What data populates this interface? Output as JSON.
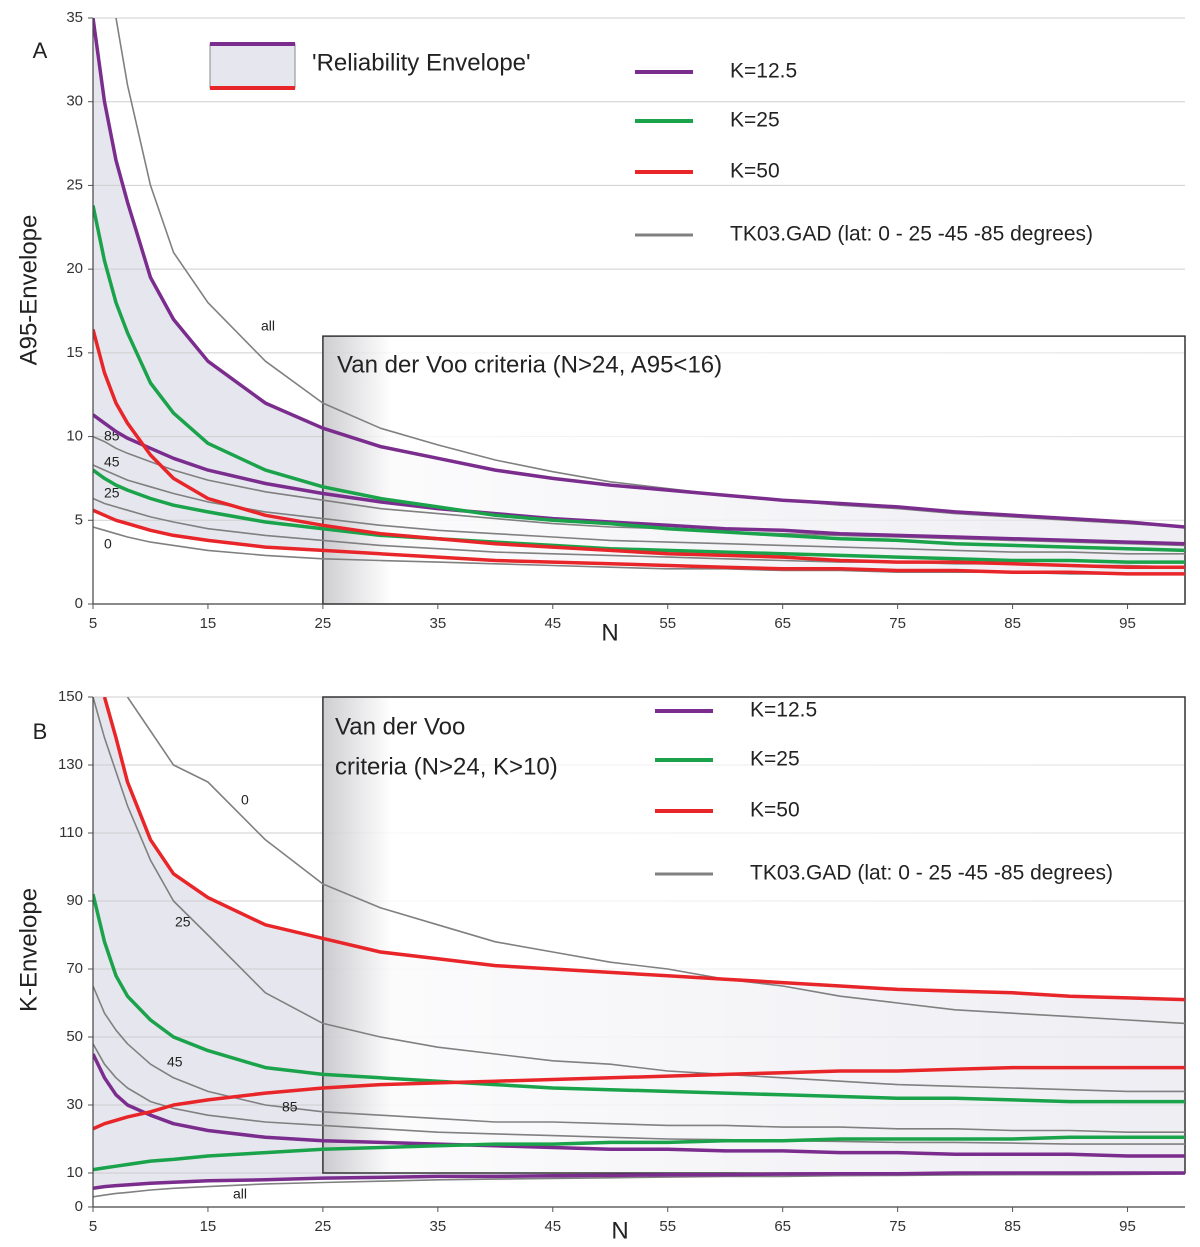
{
  "chart_data": [
    {
      "type": "line",
      "panel": "A",
      "ylabel": "A95-Envelope",
      "xlabel": "N",
      "x": [
        5,
        6,
        7,
        8,
        10,
        12,
        15,
        20,
        25,
        30,
        35,
        40,
        45,
        50,
        55,
        60,
        65,
        70,
        75,
        80,
        85,
        90,
        95,
        100
      ],
      "xlim": [
        5,
        100
      ],
      "xticks": [
        5,
        15,
        25,
        35,
        45,
        55,
        65,
        75,
        85,
        95
      ],
      "ylim": [
        0,
        35
      ],
      "yticks": [
        0,
        5,
        10,
        15,
        20,
        25,
        30,
        35
      ],
      "grid": true,
      "envelope_legend": "'Reliability Envelope'",
      "envelopes": [
        {
          "name": "K=12.5",
          "color": "#7b2d8e",
          "upper": [
            35,
            30,
            26.5,
            24,
            19.5,
            17,
            14.5,
            12,
            10.5,
            9.4,
            8.7,
            8,
            7.5,
            7.1,
            6.8,
            6.5,
            6.2,
            6,
            5.8,
            5.5,
            5.3,
            5.1,
            4.9,
            4.6
          ],
          "lower": [
            11.3,
            10.8,
            10.3,
            9.9,
            9.3,
            8.7,
            8,
            7.2,
            6.6,
            6.1,
            5.7,
            5.4,
            5.1,
            4.9,
            4.7,
            4.5,
            4.4,
            4.2,
            4.1,
            4,
            3.9,
            3.8,
            3.7,
            3.6
          ]
        },
        {
          "name": "K=25",
          "color": "#1aa34a",
          "upper": [
            23.8,
            20.5,
            18,
            16.2,
            13.2,
            11.4,
            9.6,
            8,
            7,
            6.3,
            5.8,
            5.3,
            5,
            4.8,
            4.5,
            4.3,
            4.1,
            3.9,
            3.8,
            3.6,
            3.5,
            3.4,
            3.3,
            3.2
          ],
          "lower": [
            8,
            7.5,
            7.1,
            6.8,
            6.3,
            5.9,
            5.5,
            4.9,
            4.5,
            4.1,
            3.9,
            3.7,
            3.5,
            3.3,
            3.2,
            3.1,
            3,
            2.9,
            2.8,
            2.7,
            2.6,
            2.6,
            2.5,
            2.5
          ]
        },
        {
          "name": "K=50",
          "color": "#e8262a",
          "upper": [
            16.4,
            13.8,
            12,
            10.8,
            8.9,
            7.5,
            6.3,
            5.3,
            4.7,
            4.2,
            3.9,
            3.6,
            3.4,
            3.2,
            3,
            2.9,
            2.8,
            2.6,
            2.5,
            2.5,
            2.4,
            2.3,
            2.2,
            2.2
          ],
          "lower": [
            5.6,
            5.3,
            5,
            4.8,
            4.4,
            4.1,
            3.8,
            3.4,
            3.2,
            3,
            2.8,
            2.6,
            2.5,
            2.4,
            2.3,
            2.2,
            2.1,
            2.1,
            2,
            2,
            1.9,
            1.9,
            1.8,
            1.8
          ]
        }
      ],
      "tk03": {
        "name": "TK03.GAD (lat: 0 - 25 -45 -85 degrees)",
        "color": "#808080",
        "lines": [
          {
            "label": "all",
            "values": [
              null,
              null,
              35,
              31,
              25,
              21,
              18,
              14.5,
              12,
              10.5,
              9.5,
              8.6,
              7.9,
              7.3,
              6.9,
              6.5,
              6.2,
              5.9,
              5.7,
              5.4,
              5.2,
              5,
              4.8,
              4.6
            ]
          },
          {
            "label": "85",
            "values": [
              10,
              9.7,
              9.3,
              9,
              8.5,
              8,
              7.4,
              6.7,
              6.2,
              5.7,
              5.4,
              5.1,
              4.8,
              4.6,
              4.5,
              4.3,
              4.2,
              4.1,
              4,
              3.9,
              3.8,
              3.7,
              3.6,
              3.5
            ]
          },
          {
            "label": "45",
            "values": [
              8.3,
              8,
              7.7,
              7.4,
              7,
              6.6,
              6.1,
              5.5,
              5.1,
              4.7,
              4.4,
              4.2,
              4,
              3.8,
              3.7,
              3.6,
              3.5,
              3.4,
              3.3,
              3.2,
              3.1,
              3.1,
              3,
              3
            ]
          },
          {
            "label": "25",
            "values": [
              6.3,
              6,
              5.8,
              5.6,
              5.2,
              4.9,
              4.5,
              4.1,
              3.8,
              3.5,
              3.3,
              3.1,
              3,
              2.9,
              2.8,
              2.7,
              2.6,
              2.5,
              2.5,
              2.4,
              2.4,
              2.3,
              2.3,
              2.2
            ]
          },
          {
            "label": "0",
            "values": [
              4.6,
              4.4,
              4.2,
              4,
              3.7,
              3.5,
              3.2,
              2.9,
              2.7,
              2.6,
              2.5,
              2.4,
              2.3,
              2.2,
              2.1,
              2.1,
              2,
              2,
              1.9,
              1.9,
              1.9,
              1.8,
              1.8,
              1.8
            ]
          }
        ]
      },
      "criteria": {
        "text": [
          "Van der Voo criteria (N>24, A95<16)"
        ],
        "n": 25,
        "bound": 16,
        "region": "below"
      }
    },
    {
      "type": "line",
      "panel": "B",
      "ylabel": "K-Envelope",
      "xlabel": "N",
      "x": [
        5,
        6,
        7,
        8,
        10,
        12,
        15,
        20,
        25,
        30,
        35,
        40,
        45,
        50,
        55,
        60,
        65,
        70,
        75,
        80,
        85,
        90,
        95,
        100
      ],
      "xlim": [
        5,
        100
      ],
      "xticks": [
        5,
        15,
        25,
        35,
        45,
        55,
        65,
        75,
        85,
        95
      ],
      "ylim": [
        0,
        150
      ],
      "yticks": [
        0,
        10,
        30,
        50,
        70,
        90,
        110,
        130,
        150
      ],
      "grid": true,
      "envelopes": [
        {
          "name": "K=12.5",
          "color": "#7b2d8e",
          "upper": [
            45,
            38,
            33,
            30,
            27,
            24.5,
            22.5,
            20.5,
            19.5,
            19,
            18.5,
            18,
            17.5,
            17,
            17,
            16.5,
            16.5,
            16,
            16,
            15.5,
            15.5,
            15.5,
            15,
            15
          ],
          "lower": [
            5.5,
            6,
            6.3,
            6.5,
            7,
            7.3,
            7.7,
            8,
            8.5,
            8.7,
            9,
            9,
            9.2,
            9.3,
            9.5,
            9.5,
            9.7,
            9.8,
            9.8,
            10,
            10,
            10,
            10,
            10
          ]
        },
        {
          "name": "K=25",
          "color": "#1aa34a",
          "upper": [
            92,
            78,
            68,
            62,
            55,
            50,
            46,
            41,
            39,
            38,
            37,
            36,
            35,
            34.5,
            34,
            33.5,
            33,
            32.5,
            32,
            32,
            31.5,
            31,
            31,
            31
          ],
          "lower": [
            11,
            11.5,
            12,
            12.5,
            13.5,
            14,
            15,
            16,
            17,
            17.5,
            18,
            18.5,
            18.5,
            19,
            19,
            19.5,
            19.5,
            20,
            20,
            20,
            20,
            20.5,
            20.5,
            20.5
          ]
        },
        {
          "name": "K=50",
          "color": "#e8262a",
          "upper": [
            null,
            150,
            138,
            125,
            108,
            98,
            91,
            83,
            79,
            75,
            73,
            71,
            70,
            69,
            68,
            67,
            66,
            65,
            64,
            63.5,
            63,
            62,
            61.5,
            61
          ],
          "lower": [
            23,
            24.5,
            25.5,
            26.5,
            28,
            30,
            31.5,
            33.5,
            35,
            36,
            36.5,
            37,
            37.5,
            38,
            38.5,
            39,
            39.5,
            40,
            40,
            40.5,
            41,
            41,
            41,
            41
          ]
        }
      ],
      "tk03": {
        "name": "TK03.GAD (lat: 0 - 25 -45 -85 degrees)",
        "color": "#808080",
        "lines": [
          {
            "label": "0",
            "values": [
              null,
              null,
              null,
              150,
              140,
              130,
              125,
              108,
              95,
              88,
              83,
              78,
              75,
              72,
              70,
              67,
              65,
              62,
              60,
              58,
              57,
              56,
              55,
              54
            ]
          },
          {
            "label": "25",
            "values": [
              150,
              138,
              128,
              118,
              102,
              90,
              80,
              63,
              54,
              50,
              47,
              45,
              43,
              42,
              40,
              39,
              38,
              37,
              36,
              35.5,
              35,
              34.5,
              34,
              34
            ]
          },
          {
            "label": "45",
            "values": [
              65,
              57,
              52,
              48,
              42,
              38,
              34,
              30,
              28,
              27,
              26,
              25,
              25,
              24.5,
              24,
              24,
              23.5,
              23.5,
              23,
              23,
              22.5,
              22.5,
              22,
              22
            ]
          },
          {
            "label": "85",
            "values": [
              48,
              42,
              38,
              35,
              31,
              29,
              27,
              25,
              24,
              23,
              22,
              21.5,
              21,
              20.5,
              20,
              19.8,
              19.5,
              19.3,
              19,
              19,
              18.8,
              18.5,
              18.5,
              18.5
            ]
          },
          {
            "label": "all",
            "values": [
              3,
              3.5,
              4,
              4.3,
              5,
              5.5,
              6,
              6.8,
              7.2,
              7.6,
              8,
              8.2,
              8.4,
              8.6,
              8.8,
              9,
              9,
              9.2,
              9.3,
              9.4,
              9.5,
              9.5,
              9.6,
              9.7
            ]
          }
        ]
      },
      "criteria": {
        "text": [
          "Van der Voo",
          "criteria (N>24, K>10)"
        ],
        "n": 25,
        "bound": 10,
        "region": "above"
      }
    }
  ]
}
